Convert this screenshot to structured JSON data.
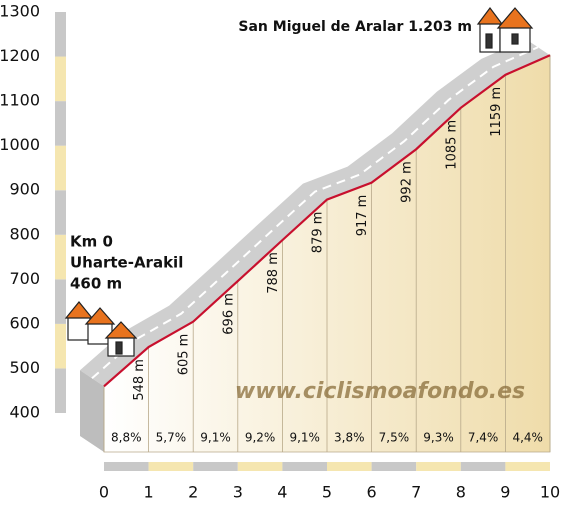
{
  "chart_data": {
    "type": "elevation-profile",
    "x": [
      0,
      1,
      2,
      3,
      4,
      5,
      6,
      7,
      8,
      9,
      10
    ],
    "values": [
      460,
      548,
      605,
      696,
      788,
      879,
      917,
      992,
      1085,
      1159,
      1203
    ],
    "value_labels": [
      null,
      "548 m",
      "605 m",
      "696 m",
      "788 m",
      "879 m",
      "917 m",
      "992 m",
      "1085 m",
      "1159 m",
      null
    ],
    "color": "#c8102e",
    "grades": {
      "values": [
        8.8,
        5.7,
        9.1,
        9.2,
        9.1,
        3.8,
        7.5,
        9.3,
        7.4,
        4.4
      ],
      "value_labels": [
        "8,8%",
        "5,7%",
        "9,1%",
        "9,2%",
        "9,1%",
        "3,8%",
        "7,5%",
        "9,3%",
        "7,4%",
        "4,4%"
      ]
    },
    "xlim": [
      0,
      10
    ],
    "xticks": [
      0,
      1,
      2,
      3,
      4,
      5,
      6,
      7,
      8,
      9,
      10
    ],
    "ylim": [
      400,
      1300
    ],
    "yticks": [
      400,
      500,
      600,
      700,
      800,
      900,
      1000,
      1100,
      1200,
      1300
    ],
    "annotations": {
      "start_km": "Km 0",
      "start_place": "Uharte-Arakil",
      "start_altitude": "460 m",
      "summit": "San Miguel de Aralar 1.203 m",
      "watermark": "www.ciclismoafondo.es"
    }
  }
}
